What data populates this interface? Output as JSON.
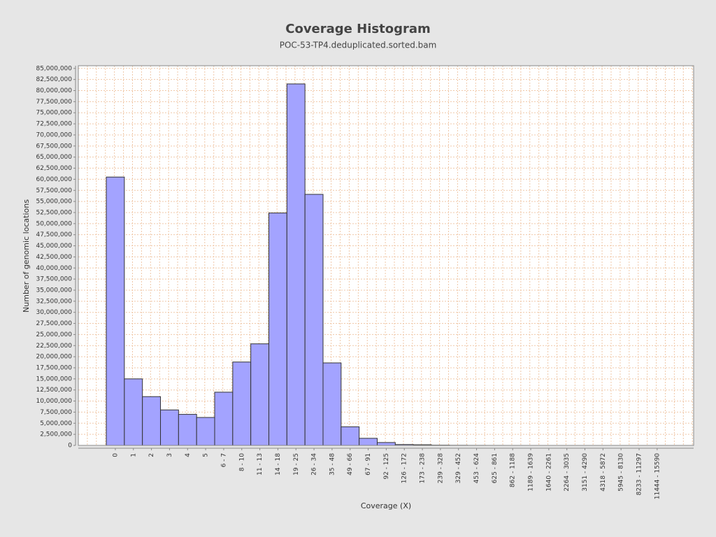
{
  "chart_data": {
    "type": "bar",
    "title": "Coverage Histogram",
    "subtitle": "POC-53-TP4.deduplicated.sorted.bam",
    "x_label": "Coverage (X)",
    "y_label": "Number of genomic locations",
    "categories": [
      "0",
      "1",
      "2",
      "3",
      "4",
      "5",
      "6 - 7",
      "8 - 10",
      "11 - 13",
      "14 - 18",
      "19 - 25",
      "26 - 34",
      "35 - 48",
      "49 - 66",
      "67 - 91",
      "92 - 125",
      "126 - 172",
      "173 - 238",
      "239 - 328",
      "329 - 452",
      "453 - 624",
      "625 - 861",
      "862 - 1188",
      "1189 - 1639",
      "1640 - 2261",
      "2264 - 3035",
      "3151 - 4290",
      "4318 - 5872",
      "5945 - 8130",
      "8233 - 11297",
      "11444 - 15590"
    ],
    "values": [
      60500000,
      15000000,
      11000000,
      8000000,
      7000000,
      6300000,
      12000000,
      18800000,
      22900000,
      52400000,
      81500000,
      56600000,
      18600000,
      4200000,
      1600000,
      650000,
      200000,
      150000,
      60000,
      30000,
      15000,
      8000,
      4000,
      2000,
      1000,
      500,
      300,
      200,
      100,
      50,
      20
    ],
    "color": "#a3a3ff",
    "ylim": [
      0,
      85600000
    ],
    "yticks": [
      {
        "value": 0,
        "label": "0"
      },
      {
        "value": 2500000,
        "label": "2,500,000"
      },
      {
        "value": 5000000,
        "label": "5,000,000"
      },
      {
        "value": 7500000,
        "label": "7,500,000"
      },
      {
        "value": 10000000,
        "label": "10,000,000"
      },
      {
        "value": 12500000,
        "label": "12,500,000"
      },
      {
        "value": 15000000,
        "label": "15,000,000"
      },
      {
        "value": 17500000,
        "label": "17,500,000"
      },
      {
        "value": 20000000,
        "label": "20,000,000"
      },
      {
        "value": 22500000,
        "label": "22,500,000"
      },
      {
        "value": 25000000,
        "label": "25,000,000"
      },
      {
        "value": 27500000,
        "label": "27,500,000"
      },
      {
        "value": 30000000,
        "label": "30,000,000"
      },
      {
        "value": 32500000,
        "label": "32,500,000"
      },
      {
        "value": 35000000,
        "label": "35,000,000"
      },
      {
        "value": 37500000,
        "label": "37,500,000"
      },
      {
        "value": 40000000,
        "label": "40,000,000"
      },
      {
        "value": 42500000,
        "label": "42,500,000"
      },
      {
        "value": 45000000,
        "label": "45,000,000"
      },
      {
        "value": 47500000,
        "label": "47,500,000"
      },
      {
        "value": 50000000,
        "label": "50,000,000"
      },
      {
        "value": 52500000,
        "label": "52,500,000"
      },
      {
        "value": 55000000,
        "label": "55,000,000"
      },
      {
        "value": 57500000,
        "label": "57,500,000"
      },
      {
        "value": 60000000,
        "label": "60,000,000"
      },
      {
        "value": 62500000,
        "label": "62,500,000"
      },
      {
        "value": 65000000,
        "label": "65,000,000"
      },
      {
        "value": 67500000,
        "label": "67,500,000"
      },
      {
        "value": 70000000,
        "label": "70,000,000"
      },
      {
        "value": 72500000,
        "label": "72,500,000"
      },
      {
        "value": 75000000,
        "label": "75,000,000"
      },
      {
        "value": 77500000,
        "label": "77,500,000"
      },
      {
        "value": 80000000,
        "label": "80,000,000"
      },
      {
        "value": 82500000,
        "label": "82,500,000"
      },
      {
        "value": 85000000,
        "label": "85,000,000"
      }
    ],
    "grid": true
  }
}
